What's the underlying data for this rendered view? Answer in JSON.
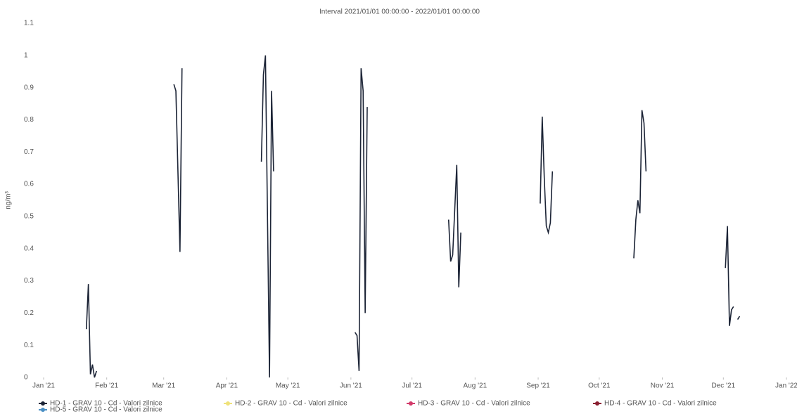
{
  "chart_data": {
    "type": "line",
    "title": "Interval 2021/01/01 00:00:00 - 2022/01/01 00:00:00",
    "y_label": "ng/m³",
    "x": [
      "2021-01-22",
      "2021-01-23",
      "2021-01-24",
      "2021-01-25",
      "2021-01-26",
      "2021-01-27",
      "2021-02-15",
      "2021-03-06",
      "2021-03-07",
      "2021-03-09",
      "2021-03-10",
      "2021-03-25",
      "2021-04-18",
      "2021-04-19",
      "2021-04-20",
      "2021-04-22",
      "2021-04-23",
      "2021-04-24",
      "2021-05-15",
      "2021-06-03",
      "2021-06-04",
      "2021-06-05",
      "2021-06-06",
      "2021-06-07",
      "2021-06-08",
      "2021-06-09",
      "2021-06-25",
      "2021-07-19",
      "2021-07-20",
      "2021-07-21",
      "2021-07-22",
      "2021-07-23",
      "2021-07-24",
      "2021-07-25",
      "2021-08-15",
      "2021-09-02",
      "2021-09-03",
      "2021-09-04",
      "2021-09-05",
      "2021-09-06",
      "2021-09-07",
      "2021-09-08",
      "2021-09-25",
      "2021-10-18",
      "2021-10-19",
      "2021-10-20",
      "2021-10-21",
      "2021-10-22",
      "2021-10-23",
      "2021-10-24",
      "2021-11-15",
      "2021-12-02",
      "2021-12-03",
      "2021-12-04",
      "2021-12-05",
      "2021-12-06",
      "2021-12-07",
      "2021-12-08",
      "2021-12-09"
    ],
    "series": [
      {
        "name": "HD-1 - GRAV 10 - Cd - Valori zilnice",
        "color": "#1c2436",
        "values": [
          0.15,
          0.29,
          0.01,
          0.04,
          0.0,
          0.02,
          null,
          0.91,
          0.89,
          0.39,
          0.96,
          null,
          0.67,
          0.94,
          1.0,
          0.0,
          0.89,
          0.64,
          null,
          0.14,
          0.13,
          0.02,
          0.96,
          0.89,
          0.2,
          0.84,
          null,
          0.49,
          0.36,
          0.38,
          0.52,
          0.66,
          0.28,
          0.45,
          null,
          0.54,
          0.81,
          0.62,
          0.47,
          0.45,
          0.48,
          0.64,
          null,
          0.37,
          0.49,
          0.55,
          0.51,
          0.83,
          0.79,
          0.64,
          null,
          0.34,
          0.47,
          0.16,
          0.21,
          0.22,
          null,
          0.18,
          0.19
        ]
      },
      {
        "name": "HD-2 - GRAV 10 - Cd - Valori zilnice",
        "color": "#efe27a",
        "values": [
          null,
          null,
          null,
          null,
          null,
          null,
          null,
          null,
          null,
          null,
          null,
          null,
          null,
          null,
          null,
          null,
          null,
          null,
          null,
          null,
          null,
          null,
          null,
          null,
          null,
          null,
          null,
          null,
          null,
          null,
          null,
          null,
          null,
          null,
          null,
          null,
          null,
          null,
          null,
          null,
          null,
          null,
          null,
          null,
          null,
          null,
          null,
          null,
          null,
          null,
          null,
          null,
          null,
          null,
          null,
          null,
          null,
          null,
          null
        ]
      },
      {
        "name": "HD-3 - GRAV 10 - Cd - Valori zilnice",
        "color": "#d23a6a",
        "values": [
          null,
          null,
          null,
          null,
          null,
          null,
          null,
          null,
          null,
          null,
          null,
          null,
          null,
          null,
          null,
          null,
          null,
          null,
          null,
          null,
          null,
          null,
          null,
          null,
          null,
          null,
          null,
          null,
          null,
          null,
          null,
          null,
          null,
          null,
          null,
          null,
          null,
          null,
          null,
          null,
          null,
          null,
          null,
          null,
          null,
          null,
          null,
          null,
          null,
          null,
          null,
          null,
          null,
          null,
          null,
          null,
          null,
          null,
          null
        ]
      },
      {
        "name": "HD-4 - GRAV 10 - Cd - Valori zilnice",
        "color": "#8a1f30",
        "values": [
          null,
          null,
          null,
          null,
          null,
          null,
          null,
          null,
          null,
          null,
          null,
          null,
          null,
          null,
          null,
          null,
          null,
          null,
          null,
          null,
          null,
          null,
          null,
          null,
          null,
          null,
          null,
          null,
          null,
          null,
          null,
          null,
          null,
          null,
          null,
          null,
          null,
          null,
          null,
          null,
          null,
          null,
          null,
          null,
          null,
          null,
          null,
          null,
          null,
          null,
          null,
          null,
          null,
          null,
          null,
          null,
          null,
          null,
          null
        ]
      },
      {
        "name": "HD-5 - GRAV 10 - Cd - Valori zilnice",
        "color": "#4a8fc4",
        "values": [
          null,
          null,
          null,
          null,
          null,
          null,
          null,
          null,
          null,
          null,
          null,
          null,
          null,
          null,
          null,
          null,
          null,
          null,
          null,
          null,
          null,
          null,
          null,
          null,
          null,
          null,
          null,
          null,
          null,
          null,
          null,
          null,
          null,
          null,
          null,
          null,
          null,
          null,
          null,
          null,
          null,
          null,
          null,
          null,
          null,
          null,
          null,
          null,
          null,
          null,
          null,
          null,
          null,
          null,
          null,
          null,
          null,
          null,
          null
        ]
      }
    ],
    "xlim": [
      "2021-01-01",
      "2022-01-01"
    ],
    "xticks": [
      {
        "value": "2021-01-01",
        "label": "Jan '21"
      },
      {
        "value": "2021-02-01",
        "label": "Feb '21"
      },
      {
        "value": "2021-03-01",
        "label": "Mar '21"
      },
      {
        "value": "2021-04-01",
        "label": "Apr '21"
      },
      {
        "value": "2021-05-01",
        "label": "May '21"
      },
      {
        "value": "2021-06-01",
        "label": "Jun '21"
      },
      {
        "value": "2021-07-01",
        "label": "Jul '21"
      },
      {
        "value": "2021-08-01",
        "label": "Aug '21"
      },
      {
        "value": "2021-09-01",
        "label": "Sep '21"
      },
      {
        "value": "2021-10-01",
        "label": "Oct '21"
      },
      {
        "value": "2021-11-01",
        "label": "Nov '21"
      },
      {
        "value": "2021-12-01",
        "label": "Dec '21"
      },
      {
        "value": "2022-01-01",
        "label": "Jan '22"
      }
    ],
    "ylim": [
      0,
      1.1
    ],
    "yticks": [
      0,
      0.1,
      0.2,
      0.3,
      0.4,
      0.5,
      0.6,
      0.7,
      0.8,
      0.9,
      1,
      1.1
    ],
    "grid": false
  }
}
